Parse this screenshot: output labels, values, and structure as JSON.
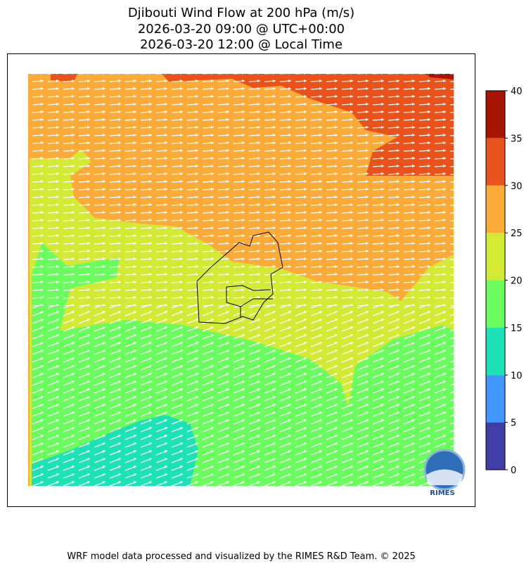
{
  "title": [
    "Djibouti Wind Flow at 200 hPa (m/s)",
    "2026-03-20 09:00 @ UTC+00:00",
    "2026-03-20 12:00 @ Local Time"
  ],
  "colorbar": {
    "ticks": [
      0,
      5,
      10,
      15,
      20,
      25,
      30,
      35,
      40
    ],
    "colors": [
      "#3f3fa6",
      "#4196ff",
      "#1be3b6",
      "#6afd5e",
      "#d2ea34",
      "#fdab38",
      "#ea521b",
      "#a51502"
    ]
  },
  "logo": "RIMES",
  "footer": "WRF model data processed and visualized by the RIMES R&D Team. © 2025"
}
